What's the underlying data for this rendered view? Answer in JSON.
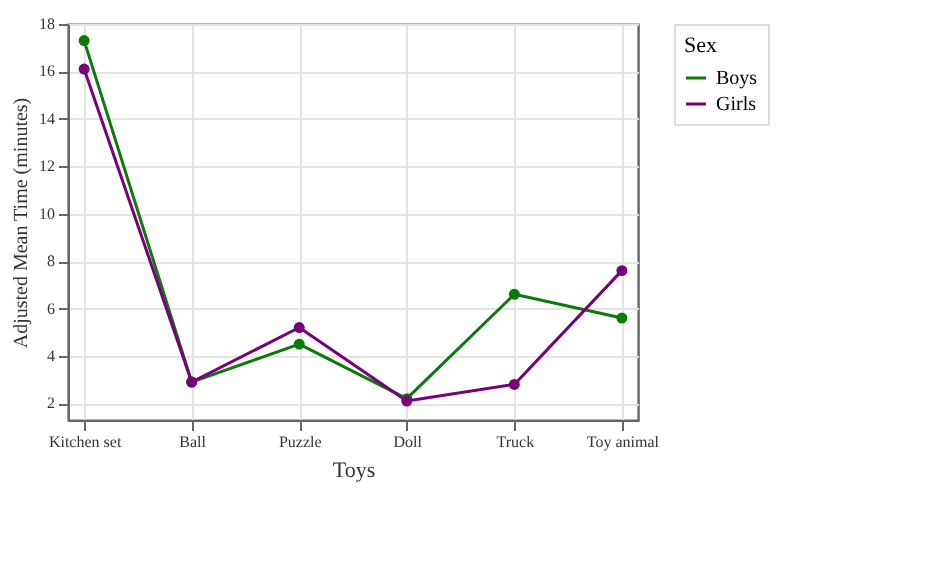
{
  "chart_data": {
    "type": "line",
    "xlabel": "Toys",
    "ylabel": "Adjusted Mean Time (minutes)",
    "legend_title": "Sex",
    "categories": [
      "Kitchen set",
      "Ball",
      "Puzzle",
      "Doll",
      "Truck",
      "Toy animal"
    ],
    "series": [
      {
        "name": "Boys",
        "color": "#0a7a0a",
        "values": [
          17.3,
          2.9,
          4.5,
          2.2,
          6.6,
          5.6
        ]
      },
      {
        "name": "Girls",
        "color": "#780078",
        "values": [
          16.1,
          2.9,
          5.2,
          2.1,
          2.8,
          7.6
        ]
      }
    ],
    "ylim": [
      1.3,
      18
    ],
    "yticks": [
      2,
      4,
      6,
      8,
      10,
      12,
      14,
      16,
      18
    ],
    "grid": true,
    "legend": "top right",
    "marker": "circle",
    "line_style": "solid"
  }
}
